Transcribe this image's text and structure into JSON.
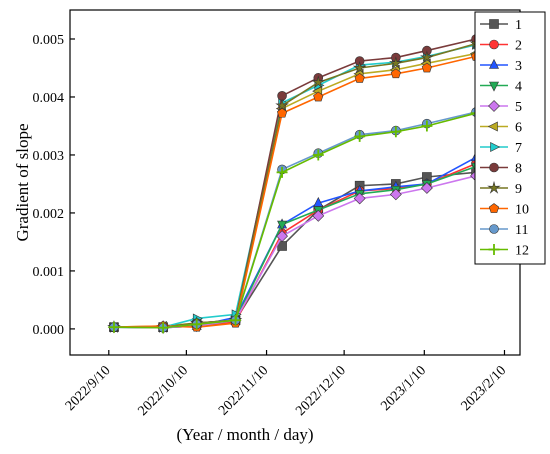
{
  "chart_data": {
    "type": "line",
    "title": "",
    "xlabel": "(Year / month / day)",
    "ylabel": "Gradient of slope",
    "x_ticks": [
      "2022/9/10",
      "2022/10/10",
      "2022/11/10",
      "2022/12/10",
      "2023/1/10",
      "2023/2/10"
    ],
    "x_range": [
      "2022/9/10",
      "2023/2/10"
    ],
    "y_ticks": [
      "0.000",
      "0.001",
      "0.002",
      "0.003",
      "0.004",
      "0.005"
    ],
    "ylim": [
      -0.00045,
      0.0055
    ],
    "x": [
      "2022/9/12",
      "2022/10/1",
      "2022/10/14",
      "2022/10/29",
      "2022/11/16",
      "2022/11/30",
      "2022/12/16",
      "2022/12/30",
      "2023/1/11",
      "2023/1/30"
    ],
    "series": [
      {
        "name": "1",
        "color": "#555555",
        "marker": "square",
        "values": [
          3e-05,
          3e-05,
          0.0001,
          0.00015,
          0.00143,
          0.00205,
          0.00247,
          0.0025,
          0.00262,
          0.0027
        ]
      },
      {
        "name": "2",
        "color": "#ff3333",
        "marker": "circle",
        "values": [
          3e-05,
          3e-05,
          5e-05,
          0.00012,
          0.00165,
          0.00205,
          0.00238,
          0.00242,
          0.0025,
          0.00285
        ]
      },
      {
        "name": "3",
        "color": "#2255ff",
        "marker": "triangle-up",
        "values": [
          3e-05,
          2e-05,
          5e-05,
          0.0002,
          0.0018,
          0.00217,
          0.00238,
          0.00245,
          0.0025,
          0.00296
        ]
      },
      {
        "name": "4",
        "color": "#22aa55",
        "marker": "triangle-down",
        "values": [
          3e-05,
          2e-05,
          5e-05,
          0.00015,
          0.0018,
          0.00205,
          0.00233,
          0.0024,
          0.0025,
          0.0028
        ]
      },
      {
        "name": "5",
        "color": "#cc77ee",
        "marker": "diamond",
        "values": [
          3e-05,
          2e-05,
          5e-05,
          0.00015,
          0.0016,
          0.00195,
          0.00225,
          0.00232,
          0.00243,
          0.00264
        ]
      },
      {
        "name": "6",
        "color": "#bbaa22",
        "marker": "triangle-left",
        "values": [
          3e-05,
          5e-05,
          0.0001,
          0.00015,
          0.0038,
          0.0041,
          0.0044,
          0.00447,
          0.00458,
          0.00475
        ]
      },
      {
        "name": "7",
        "color": "#22cccc",
        "marker": "triangle-right",
        "values": [
          3e-05,
          3e-05,
          0.00018,
          0.00025,
          0.0039,
          0.0042,
          0.00455,
          0.0046,
          0.0047,
          0.0049
        ]
      },
      {
        "name": "8",
        "color": "#7a3b3b",
        "marker": "circle",
        "values": [
          3e-05,
          3e-05,
          0.0001,
          0.00015,
          0.00402,
          0.00433,
          0.00462,
          0.00468,
          0.0048,
          0.005
        ]
      },
      {
        "name": "9",
        "color": "#777722",
        "marker": "star",
        "values": [
          3e-05,
          3e-05,
          0.0001,
          0.00015,
          0.00385,
          0.00425,
          0.0045,
          0.00458,
          0.00468,
          0.00492
        ]
      },
      {
        "name": "10",
        "color": "#ff6600",
        "marker": "pentagon",
        "values": [
          3e-05,
          5e-05,
          3e-05,
          0.0001,
          0.00372,
          0.004,
          0.00432,
          0.0044,
          0.0045,
          0.0047
        ]
      },
      {
        "name": "11",
        "color": "#6699cc",
        "marker": "circle",
        "values": [
          3e-05,
          2e-05,
          8e-05,
          0.00015,
          0.00275,
          0.00303,
          0.00335,
          0.00342,
          0.00354,
          0.00374
        ]
      },
      {
        "name": "12",
        "color": "#66bb00",
        "marker": "plus",
        "values": [
          3e-05,
          2e-05,
          8e-05,
          0.00015,
          0.0027,
          0.003,
          0.00332,
          0.0034,
          0.0035,
          0.00372
        ]
      }
    ],
    "grid": false,
    "legend_position": "right"
  }
}
